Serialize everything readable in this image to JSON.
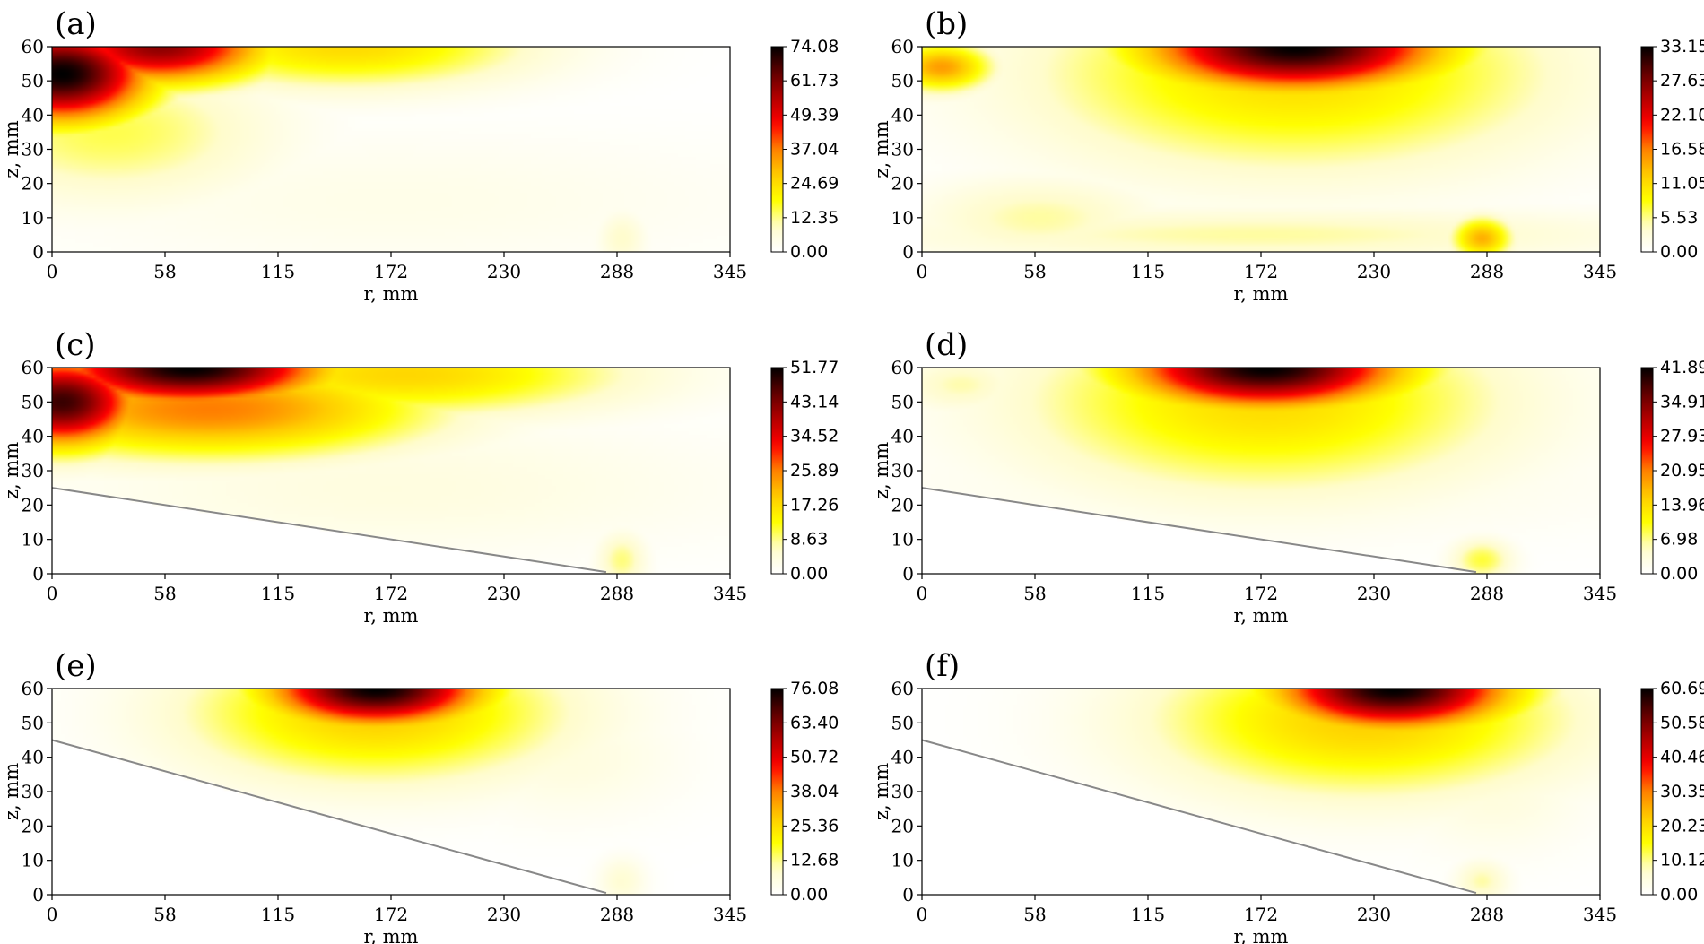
{
  "colormap": [
    "#ffffff",
    "#fffccc",
    "#ffff00",
    "#ffcc00",
    "#ff8000",
    "#ff0000",
    "#b40000",
    "#600000",
    "#000000"
  ],
  "chart_data": [
    {
      "type": "heatmap",
      "panel": "(a)",
      "xlabel": "r, mm",
      "ylabel": "z, mm",
      "xlim": [
        0,
        345
      ],
      "ylim": [
        0,
        60
      ],
      "xticks": [
        "0",
        "58",
        "115",
        "172",
        "230",
        "288",
        "345"
      ],
      "yticks": [
        "0",
        "10",
        "20",
        "30",
        "40",
        "50",
        "60"
      ],
      "colorbar_ticks": [
        "0.00",
        "12.35",
        "24.69",
        "37.04",
        "49.39",
        "61.73",
        "74.08"
      ],
      "vmax": 74.08,
      "hotspots": [
        {
          "r": 5,
          "z": 52,
          "sr": 45,
          "sz": 14,
          "value": 74.08
        },
        {
          "r": 55,
          "z": 60,
          "sr": 55,
          "sz": 11,
          "value": 60
        },
        {
          "r": 150,
          "z": 60,
          "sr": 90,
          "sz": 12,
          "value": 25
        },
        {
          "r": 30,
          "z": 35,
          "sr": 80,
          "sz": 20,
          "value": 15
        },
        {
          "r": 290,
          "z": 4,
          "sr": 12,
          "sz": 8,
          "value": 9
        },
        {
          "r": 172,
          "z": 15,
          "sr": 200,
          "sz": 20,
          "value": 4
        }
      ],
      "wall_line": null
    },
    {
      "type": "heatmap",
      "panel": "(b)",
      "xlabel": "r, mm",
      "ylabel": "z, mm",
      "xlim": [
        0,
        345
      ],
      "ylim": [
        0,
        60
      ],
      "xticks": [
        "0",
        "58",
        "115",
        "172",
        "230",
        "288",
        "345"
      ],
      "yticks": [
        "0",
        "10",
        "20",
        "30",
        "40",
        "50",
        "60"
      ],
      "colorbar_ticks": [
        "0.00",
        "5.53",
        "11.05",
        "16.58",
        "22.10",
        "27.63",
        "33.15"
      ],
      "vmax": 33.15,
      "hotspots": [
        {
          "r": 190,
          "z": 60,
          "sr": 75,
          "sz": 13,
          "value": 33.15
        },
        {
          "r": 190,
          "z": 52,
          "sr": 130,
          "sz": 28,
          "value": 11
        },
        {
          "r": 10,
          "z": 54,
          "sr": 25,
          "sz": 7,
          "value": 15
        },
        {
          "r": 285,
          "z": 4,
          "sr": 15,
          "sz": 6,
          "value": 14
        },
        {
          "r": 60,
          "z": 10,
          "sr": 60,
          "sz": 12,
          "value": 5
        },
        {
          "r": 172,
          "z": 5,
          "sr": 200,
          "sz": 8,
          "value": 5
        }
      ],
      "wall_line": null
    },
    {
      "type": "heatmap",
      "panel": "(c)",
      "xlabel": "r, mm",
      "ylabel": "z, mm",
      "xlim": [
        0,
        345
      ],
      "ylim": [
        0,
        60
      ],
      "xticks": [
        "0",
        "58",
        "115",
        "172",
        "230",
        "288",
        "345"
      ],
      "yticks": [
        "0",
        "10",
        "20",
        "30",
        "40",
        "50",
        "60"
      ],
      "colorbar_ticks": [
        "0.00",
        "8.63",
        "17.26",
        "25.89",
        "34.52",
        "43.14",
        "51.77"
      ],
      "vmax": 51.77,
      "hotspots": [
        {
          "r": 5,
          "z": 50,
          "sr": 40,
          "sz": 13,
          "value": 48
        },
        {
          "r": 70,
          "z": 60,
          "sr": 70,
          "sz": 11,
          "value": 51.77
        },
        {
          "r": 80,
          "z": 48,
          "sr": 110,
          "sz": 14,
          "value": 26
        },
        {
          "r": 180,
          "z": 58,
          "sr": 110,
          "sz": 12,
          "value": 18
        },
        {
          "r": 290,
          "z": 4,
          "sr": 12,
          "sz": 8,
          "value": 9
        },
        {
          "r": 172,
          "z": 25,
          "sr": 180,
          "sz": 20,
          "value": 4
        }
      ],
      "wall_line": {
        "r0": 0,
        "z0": 25,
        "r1": 282,
        "z1": 0.5
      }
    },
    {
      "type": "heatmap",
      "panel": "(d)",
      "xlabel": "r, mm",
      "ylabel": "z, mm",
      "xlim": [
        0,
        345
      ],
      "ylim": [
        0,
        60
      ],
      "xticks": [
        "0",
        "58",
        "115",
        "172",
        "230",
        "288",
        "345"
      ],
      "yticks": [
        "0",
        "10",
        "20",
        "30",
        "40",
        "50",
        "60"
      ],
      "colorbar_ticks": [
        "0.00",
        "6.98",
        "13.96",
        "20.95",
        "27.93",
        "34.91",
        "41.89"
      ],
      "vmax": 41.89,
      "hotspots": [
        {
          "r": 175,
          "z": 60,
          "sr": 70,
          "sz": 12,
          "value": 41.89
        },
        {
          "r": 175,
          "z": 50,
          "sr": 120,
          "sz": 26,
          "value": 14
        },
        {
          "r": 285,
          "z": 4,
          "sr": 15,
          "sz": 6,
          "value": 9
        },
        {
          "r": 20,
          "z": 55,
          "sr": 30,
          "sz": 8,
          "value": 6
        },
        {
          "r": 172,
          "z": 28,
          "sr": 180,
          "sz": 18,
          "value": 3
        }
      ],
      "wall_line": {
        "r0": 0,
        "z0": 25,
        "r1": 282,
        "z1": 0.5
      }
    },
    {
      "type": "heatmap",
      "panel": "(e)",
      "xlabel": "r, mm",
      "ylabel": "z, mm",
      "xlim": [
        0,
        345
      ],
      "ylim": [
        0,
        60
      ],
      "xticks": [
        "0",
        "58",
        "115",
        "172",
        "230",
        "288",
        "345"
      ],
      "yticks": [
        "0",
        "10",
        "20",
        "30",
        "40",
        "50",
        "60"
      ],
      "colorbar_ticks": [
        "0.00",
        "12.68",
        "25.36",
        "38.04",
        "50.72",
        "63.40",
        "76.08"
      ],
      "vmax": 76.08,
      "hotspots": [
        {
          "r": 165,
          "z": 60,
          "sr": 55,
          "sz": 11,
          "value": 76.08
        },
        {
          "r": 165,
          "z": 53,
          "sr": 95,
          "sz": 20,
          "value": 28
        },
        {
          "r": 290,
          "z": 4,
          "sr": 12,
          "sz": 7,
          "value": 8
        },
        {
          "r": 260,
          "z": 40,
          "sr": 60,
          "sz": 18,
          "value": 6
        }
      ],
      "wall_line": {
        "r0": 0,
        "z0": 45,
        "r1": 282,
        "z1": 0.5
      }
    },
    {
      "type": "heatmap",
      "panel": "(f)",
      "xlabel": "r, mm",
      "ylabel": "z, mm",
      "xlim": [
        0,
        345
      ],
      "ylim": [
        0,
        60
      ],
      "xticks": [
        "0",
        "58",
        "115",
        "172",
        "230",
        "288",
        "345"
      ],
      "yticks": [
        "0",
        "10",
        "20",
        "30",
        "40",
        "50",
        "60"
      ],
      "colorbar_ticks": [
        "0.00",
        "10.12",
        "20.23",
        "30.35",
        "40.46",
        "50.58",
        "60.69"
      ],
      "vmax": 60.69,
      "hotspots": [
        {
          "r": 240,
          "z": 60,
          "sr": 60,
          "sz": 12,
          "value": 60.69
        },
        {
          "r": 225,
          "z": 51,
          "sr": 105,
          "sz": 22,
          "value": 22
        },
        {
          "r": 285,
          "z": 4,
          "sr": 13,
          "sz": 6,
          "value": 9
        },
        {
          "r": 290,
          "z": 30,
          "sr": 50,
          "sz": 18,
          "value": 5
        }
      ],
      "wall_line": {
        "r0": 0,
        "z0": 45,
        "r1": 282,
        "z1": 0.5
      }
    }
  ]
}
